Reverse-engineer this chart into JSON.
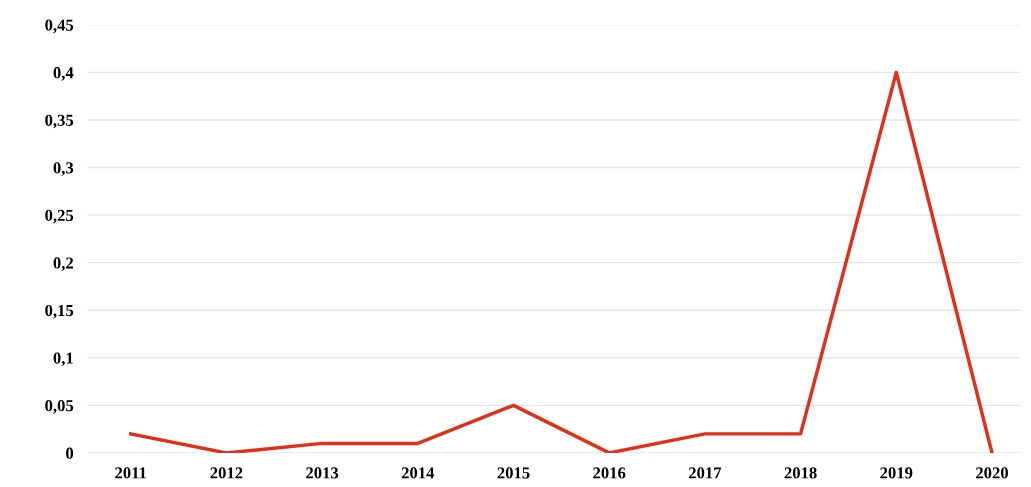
{
  "chart_data": {
    "type": "line",
    "categories": [
      "2011",
      "2012",
      "2013",
      "2014",
      "2015",
      "2016",
      "2017",
      "2018",
      "2019",
      "2020"
    ],
    "series": [
      {
        "color": "#e0301a",
        "values": [
          0.02,
          0.0,
          0.01,
          0.01,
          0.05,
          0.0,
          0.02,
          0.02,
          0.4,
          0.0
        ]
      }
    ],
    "ylim": [
      0,
      0.45
    ],
    "yticks": [
      0,
      {
        "value": 0.05,
        "label": "0,05"
      },
      {
        "value": 0.1,
        "label": "0,1"
      },
      {
        "value": 0.15,
        "label": "0,15"
      },
      {
        "value": 0.2,
        "label": "0,2"
      },
      {
        "value": 0.25,
        "label": "0,25"
      },
      {
        "value": 0.3,
        "label": "0,3"
      },
      {
        "value": 0.35,
        "label": "0,35"
      },
      {
        "value": 0.4,
        "label": "0,4"
      },
      {
        "value": 0.45,
        "label": "0,45"
      }
    ],
    "grid": "y",
    "marker": "none",
    "line_style": "solid"
  }
}
